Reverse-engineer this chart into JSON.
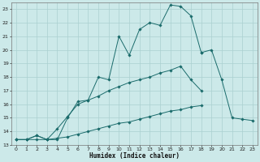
{
  "xlabel": "Humidex (Indice chaleur)",
  "background_color": "#cce9e9",
  "grid_color": "#aad0d0",
  "line_color": "#1a6b6b",
  "xlim": [
    -0.5,
    23.5
  ],
  "ylim": [
    13,
    23.5
  ],
  "yticks": [
    13,
    14,
    15,
    16,
    17,
    18,
    19,
    20,
    21,
    22,
    23
  ],
  "xticks": [
    0,
    1,
    2,
    3,
    4,
    5,
    6,
    7,
    8,
    9,
    10,
    11,
    12,
    13,
    14,
    15,
    16,
    17,
    18,
    19,
    20,
    21,
    22,
    23
  ],
  "line1_x": [
    0,
    1,
    2,
    3,
    4,
    5,
    6,
    7,
    8,
    9,
    10,
    11,
    12,
    13,
    14,
    15,
    16,
    17,
    18,
    19,
    20,
    21,
    22,
    23
  ],
  "line1_y": [
    13.4,
    13.4,
    13.7,
    13.4,
    13.4,
    15.0,
    16.2,
    16.3,
    18.0,
    17.8,
    21.0,
    19.6,
    21.5,
    22.0,
    21.8,
    23.3,
    23.2,
    22.5,
    19.8,
    null,
    null,
    null,
    null,
    null
  ],
  "line2_x": [
    0,
    1,
    2,
    3,
    4,
    5,
    6,
    7,
    8,
    9,
    10,
    11,
    12,
    13,
    14,
    15,
    16,
    17,
    18,
    19,
    20,
    21,
    22,
    23
  ],
  "line2_y": [
    13.4,
    13.4,
    13.7,
    13.4,
    14.2,
    15.1,
    16.0,
    16.3,
    16.6,
    17.0,
    17.3,
    17.6,
    17.8,
    18.0,
    18.3,
    18.5,
    18.8,
    17.8,
    17.0,
    null,
    null,
    null,
    null,
    null
  ],
  "line3_x": [
    0,
    1,
    2,
    3,
    4,
    5,
    6,
    7,
    8,
    9,
    10,
    11,
    12,
    13,
    14,
    15,
    16,
    17,
    18,
    19,
    20,
    21,
    22,
    23
  ],
  "line3_y": [
    13.4,
    13.4,
    13.4,
    13.4,
    13.5,
    13.6,
    13.8,
    14.0,
    14.2,
    14.4,
    14.6,
    14.7,
    14.9,
    15.1,
    15.3,
    15.5,
    15.6,
    15.8,
    15.9,
    null,
    null,
    null,
    null,
    null
  ],
  "line4_x": [
    18,
    19,
    20,
    21,
    22,
    23
  ],
  "line4_y": [
    19.8,
    20.0,
    17.8,
    15.0,
    14.9,
    14.8
  ]
}
